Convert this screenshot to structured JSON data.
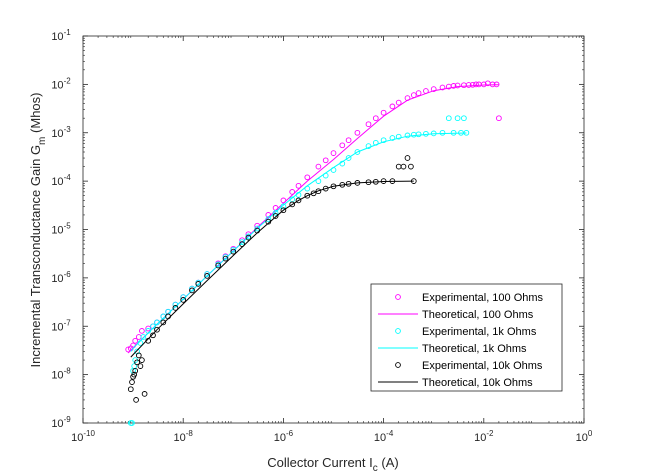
{
  "chart_data": {
    "type": "scatter",
    "xscale": "log",
    "yscale": "log",
    "xlabel": "Collector Current I",
    "xlabel_sub": "c",
    "xlabel_unit": "(A)",
    "ylabel": "Incremental Transconductance Gain G",
    "ylabel_sub": "m",
    "ylabel_unit": "(Mhos)",
    "xlim": [
      1e-10,
      1
    ],
    "ylim": [
      1e-09,
      0.1
    ],
    "grid": false,
    "legend_position": "lower-right",
    "tick_base": "10",
    "x_tick_exponents": [
      "-10",
      "-8",
      "-6",
      "-4",
      "-2",
      "0"
    ],
    "y_tick_exponents": [
      "-9",
      "-8",
      "-7",
      "-6",
      "-5",
      "-4",
      "-3",
      "-2",
      "-1"
    ],
    "series": [
      {
        "name": "Experimental, 100 Ohms",
        "kind": "markers",
        "color": "#ff00ff",
        "x": [
          8e-10,
          9e-10,
          1e-09,
          1.1e-09,
          1.3e-09,
          1.5e-09,
          2e-09,
          2.5e-09,
          3e-09,
          4e-09,
          5e-09,
          7e-09,
          1e-08,
          1.5e-08,
          2e-08,
          3e-08,
          5e-08,
          7e-08,
          1e-07,
          1.5e-07,
          2e-07,
          3e-07,
          5e-07,
          7e-07,
          1e-06,
          1.5e-06,
          2e-06,
          3e-06,
          5e-06,
          7e-06,
          1e-05,
          1.5e-05,
          2e-05,
          3e-05,
          5e-05,
          7e-05,
          0.0001,
          0.00015,
          0.0002,
          0.0003,
          0.0004,
          0.0005,
          0.0007,
          0.001,
          0.0015,
          0.002,
          0.0025,
          0.003,
          0.004,
          0.005,
          0.006,
          0.007,
          0.008,
          0.01,
          0.012,
          0.015,
          0.018,
          0.02
        ],
        "y": [
          3.3e-08,
          3.5e-08,
          4e-08,
          5e-08,
          6e-08,
          8e-08,
          9e-08,
          1e-07,
          1.2e-07,
          1.6e-07,
          2e-07,
          2.8e-07,
          4e-07,
          6e-07,
          8e-07,
          1.2e-06,
          2e-06,
          2.8e-06,
          4e-06,
          6e-06,
          8e-06,
          1.2e-05,
          2e-05,
          2.8e-05,
          4e-05,
          6e-05,
          8e-05,
          0.00012,
          0.0002,
          0.00027,
          0.00038,
          0.00055,
          0.0007,
          0.001,
          0.0015,
          0.002,
          0.0026,
          0.0035,
          0.0042,
          0.0052,
          0.006,
          0.0066,
          0.0073,
          0.008,
          0.0086,
          0.009,
          0.0093,
          0.0095,
          0.0096,
          0.0097,
          0.0098,
          0.01,
          0.01,
          0.01,
          0.0105,
          0.01,
          0.01,
          0.002
        ]
      },
      {
        "name": "Theoretical, 100 Ohms",
        "kind": "line",
        "color": "#ff00ff",
        "x": [
          8e-10,
          1e-09,
          3e-09,
          1e-08,
          3e-08,
          1e-07,
          3e-07,
          1e-06,
          3e-06,
          1e-05,
          3e-05,
          0.0001,
          0.0003,
          0.001,
          0.003,
          0.01,
          0.02
        ],
        "y": [
          2.8e-08,
          3.6e-08,
          1.1e-07,
          3.6e-07,
          1.1e-06,
          3.6e-06,
          1.1e-05,
          3.5e-05,
          0.0001,
          0.00028,
          0.00076,
          0.0022,
          0.0047,
          0.0074,
          0.009,
          0.0097,
          0.0098
        ]
      },
      {
        "name": "Experimental, 1k Ohms",
        "kind": "markers",
        "color": "#00ffff",
        "x": [
          9e-10,
          9.5e-10,
          1e-09,
          1.05e-09,
          1.1e-09,
          1.2e-09,
          1.4e-09,
          1.6e-09,
          2e-09,
          2.5e-09,
          3e-09,
          4e-09,
          5e-09,
          7e-09,
          1e-08,
          1.5e-08,
          2e-08,
          3e-08,
          5e-08,
          7e-08,
          1e-07,
          1.5e-07,
          2e-07,
          3e-07,
          5e-07,
          7e-07,
          1e-06,
          1.5e-06,
          2e-06,
          3e-06,
          5e-06,
          7e-06,
          1e-05,
          1.5e-05,
          2e-05,
          3e-05,
          5e-05,
          7e-05,
          0.0001,
          0.00015,
          0.0002,
          0.0003,
          0.0004,
          0.0005,
          0.0007,
          0.001,
          0.0015,
          0.002,
          0.0025,
          0.003,
          0.0035,
          0.004,
          0.0045
        ],
        "y": [
          1e-09,
          1e-09,
          1.2e-08,
          1.5e-08,
          2e-08,
          3e-08,
          4.5e-08,
          6e-08,
          8e-08,
          1e-07,
          1.2e-07,
          1.6e-07,
          2e-07,
          2.8e-07,
          4e-07,
          6e-07,
          8e-07,
          1.2e-06,
          1.9e-06,
          2.7e-06,
          3.8e-06,
          5.5e-06,
          7.2e-06,
          1.05e-05,
          1.65e-05,
          2.2e-05,
          3e-05,
          4.2e-05,
          5.2e-05,
          7e-05,
          0.0001,
          0.00013,
          0.00017,
          0.00023,
          0.0003,
          0.0004,
          0.00053,
          0.00062,
          0.0007,
          0.00078,
          0.00083,
          0.00088,
          0.00091,
          0.00093,
          0.00095,
          0.00097,
          0.001,
          0.002,
          0.001,
          0.002,
          0.001,
          0.002,
          0.001
        ]
      },
      {
        "name": "Theoretical, 1k Ohms",
        "kind": "line",
        "color": "#00ffff",
        "x": [
          9e-10,
          1e-09,
          3e-09,
          1e-08,
          3e-08,
          1e-07,
          3e-07,
          1e-06,
          3e-06,
          1e-05,
          3e-05,
          0.0001,
          0.0003,
          0.001,
          0.0045
        ],
        "y": [
          3e-08,
          3.5e-08,
          1.1e-07,
          3.6e-07,
          1.1e-06,
          3.6e-06,
          1.05e-05,
          3.2e-05,
          8e-05,
          0.00019,
          0.0004,
          0.00065,
          0.00085,
          0.00095,
          0.00099
        ]
      },
      {
        "name": "Experimental, 10k Ohms",
        "kind": "markers",
        "color": "#000000",
        "x": [
          9e-10,
          9.5e-10,
          1e-09,
          1.05e-09,
          1.1e-09,
          1.15e-09,
          1.2e-09,
          1.3e-09,
          1.4e-09,
          1.5e-09,
          1.7e-09,
          2e-09,
          2.5e-09,
          3e-09,
          4e-09,
          5e-09,
          7e-09,
          1e-08,
          1.5e-08,
          2e-08,
          3e-08,
          5e-08,
          7e-08,
          1e-07,
          1.5e-07,
          2e-07,
          3e-07,
          5e-07,
          7e-07,
          1e-06,
          1.5e-06,
          2e-06,
          3e-06,
          4e-06,
          5e-06,
          7e-06,
          1e-05,
          1.5e-05,
          2e-05,
          3e-05,
          5e-05,
          7e-05,
          0.0001,
          0.00015,
          0.0002,
          0.00025,
          0.0003,
          0.00035,
          0.0004
        ],
        "y": [
          5e-09,
          7e-09,
          9e-09,
          1e-08,
          1.2e-08,
          3e-09,
          1.8e-08,
          2.5e-08,
          1.5e-08,
          2e-08,
          4e-09,
          5e-08,
          6.5e-08,
          8.5e-08,
          1.2e-07,
          1.6e-07,
          2.4e-07,
          3.5e-07,
          5.5e-07,
          7.5e-07,
          1.1e-06,
          1.8e-06,
          2.5e-06,
          3.5e-06,
          5e-06,
          6.8e-06,
          9.5e-06,
          1.45e-05,
          1.9e-05,
          2.5e-05,
          3.3e-05,
          4e-05,
          5e-05,
          5.6e-05,
          6.2e-05,
          7e-05,
          7.8e-05,
          8.4e-05,
          8.8e-05,
          9.2e-05,
          9.5e-05,
          9.7e-05,
          0.0001,
          0.0001,
          0.0002,
          0.0002,
          0.0003,
          0.0002,
          0.0001
        ]
      },
      {
        "name": "Theoretical, 10k Ohms",
        "kind": "line",
        "color": "#000000",
        "x": [
          9e-10,
          1e-09,
          3e-09,
          1e-08,
          3e-08,
          1e-07,
          3e-07,
          1e-06,
          2e-06,
          3e-06,
          5e-06,
          1e-05,
          3e-05,
          0.0001,
          0.0004
        ],
        "y": [
          2.3e-08,
          2.6e-08,
          8.5e-08,
          2.9e-07,
          8.8e-07,
          2.9e-06,
          8.5e-06,
          2.5e-05,
          4e-05,
          5e-05,
          6.3e-05,
          7.8e-05,
          9.2e-05,
          9.8e-05,
          0.0001
        ]
      }
    ]
  }
}
